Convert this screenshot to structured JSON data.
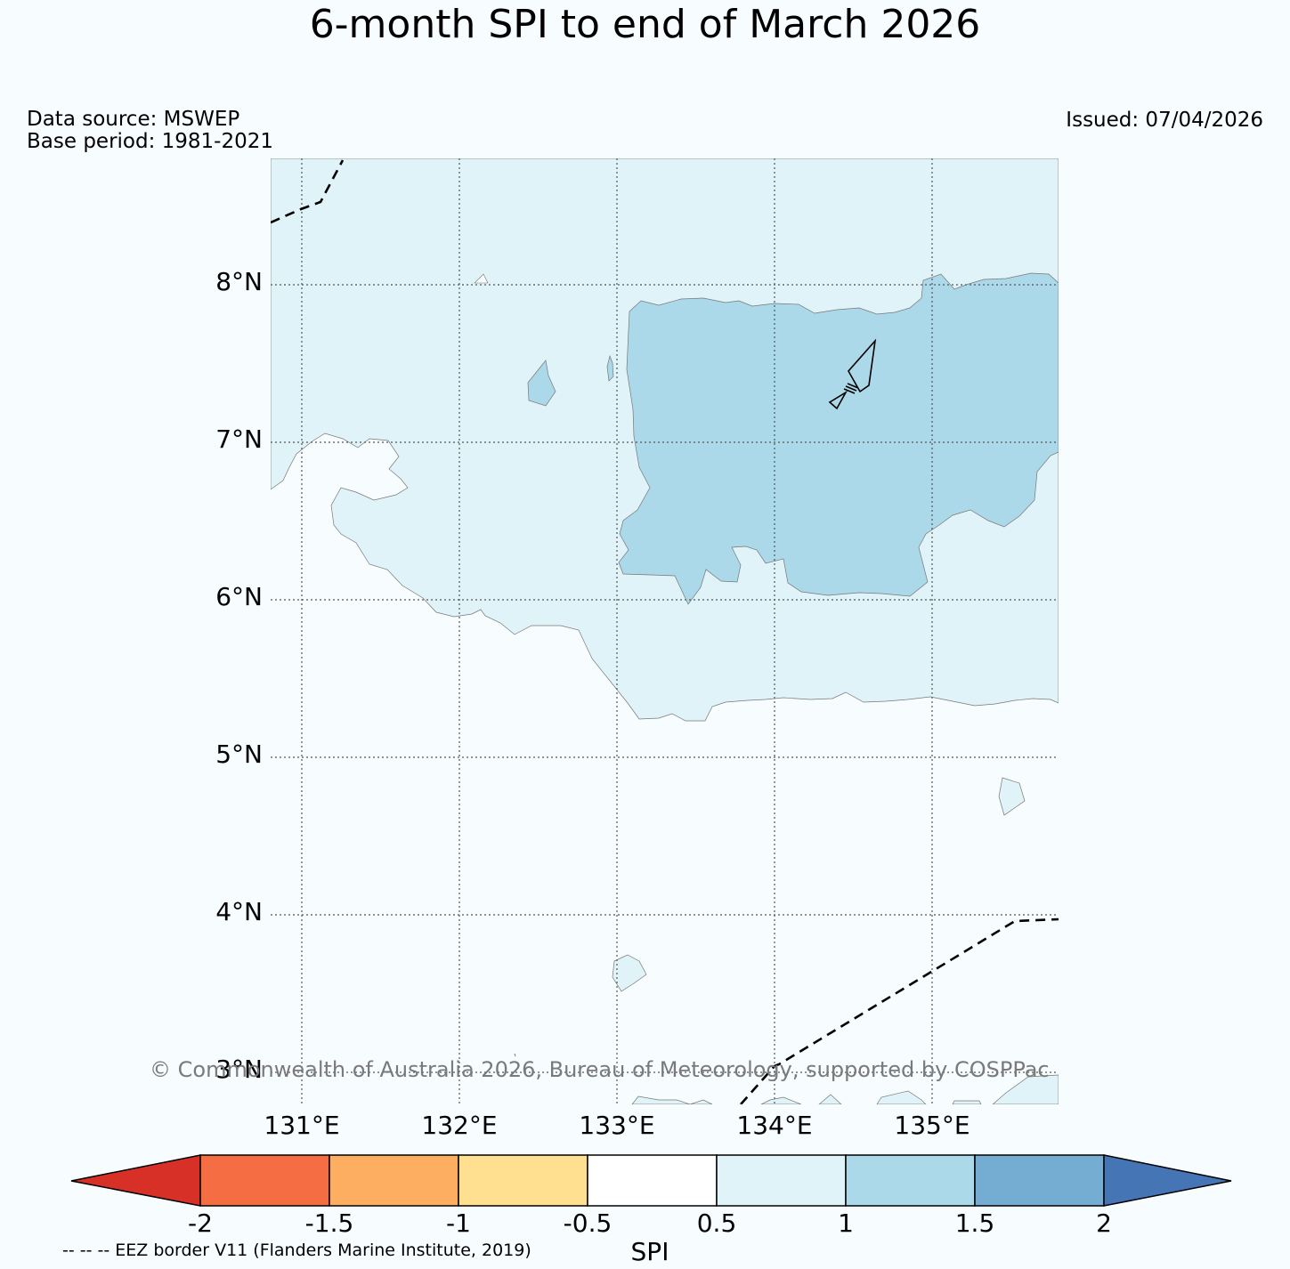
{
  "title": "6-month SPI to end of March 2026",
  "data_source": "Data source: MSWEP",
  "base_period": "Base period: 1981-2021",
  "issued": "Issued: 07/04/2026",
  "copyright": "© Commonwealth of Australia 2026, Bureau of Meteorology, supported by COSPPac",
  "eez_note": "-- -- -- EEZ border V11 (Flanders Marine Institute, 2019)",
  "map": {
    "lat_labels": [
      "8°N",
      "7°N",
      "6°N",
      "5°N",
      "4°N",
      "3°N"
    ],
    "lon_labels": [
      "131°E",
      "132°E",
      "133°E",
      "134°E",
      "135°E"
    ],
    "lat_range": [
      2.8,
      8.8
    ],
    "lon_range": [
      130.8,
      135.8
    ]
  },
  "colorbar": {
    "title": "SPI",
    "tick_labels": [
      "-2",
      "-1.5",
      "-1",
      "-0.5",
      "0.5",
      "1",
      "1.5",
      "2"
    ],
    "colors": [
      "#d73027",
      "#f46d43",
      "#fdae61",
      "#fee090",
      "#ffffff",
      "#e0f3f8",
      "#abd9e9",
      "#74add1",
      "#4575b4"
    ],
    "extend": "both"
  },
  "colors": {
    "background": "#f7fcfe",
    "spi_0_5_to_1": "#e0f3f8",
    "spi_1_to_1_5": "#abd9e9"
  }
}
